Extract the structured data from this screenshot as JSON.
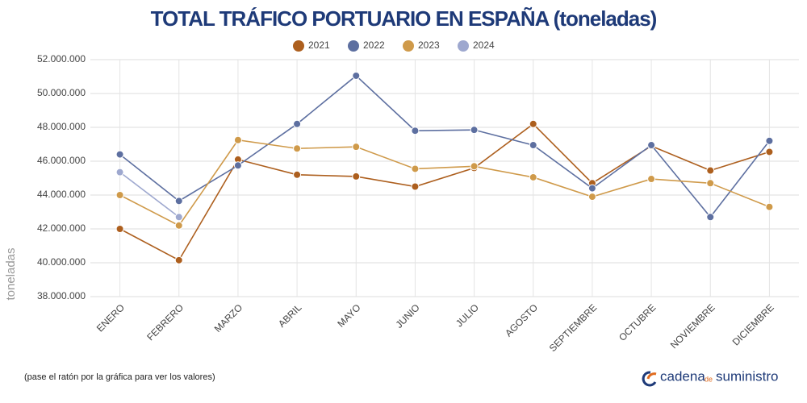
{
  "chart_data": {
    "type": "line",
    "title": "TOTAL TRÁFICO PORTUARIO EN ESPAÑA (toneladas)",
    "y_label": "toneladas",
    "categories": [
      "ENERO",
      "FEBRERO",
      "MARZO",
      "ABRIL",
      "MAYO",
      "JUNIO",
      "JULIO",
      "AGOSTO",
      "SEPTIEMBRE",
      "OCTUBRE",
      "NOVIEMBRE",
      "DICIEMBRE"
    ],
    "series": [
      {
        "name": "2021",
        "color": "#ad5f1e",
        "values": [
          42000000,
          40150000,
          46100000,
          45200000,
          45100000,
          44500000,
          45600000,
          48200000,
          44700000,
          46900000,
          45450000,
          46550000
        ]
      },
      {
        "name": "2022",
        "color": "#5d6fa0",
        "values": [
          46400000,
          43650000,
          45750000,
          48200000,
          51050000,
          47800000,
          47850000,
          46950000,
          44400000,
          46950000,
          42700000,
          47200000
        ]
      },
      {
        "name": "2023",
        "color": "#cf9a4a",
        "values": [
          44000000,
          42200000,
          47250000,
          46750000,
          46850000,
          45550000,
          45700000,
          45050000,
          43900000,
          44950000,
          44700000,
          43300000
        ]
      },
      {
        "name": "2024",
        "color": "#9ea8cf",
        "values": [
          45350000,
          42700000,
          null,
          null,
          null,
          null,
          null,
          null,
          null,
          null,
          null,
          null
        ]
      }
    ],
    "ylim": [
      38000000,
      52000000
    ],
    "yticks": [
      {
        "value": 38000000,
        "label": "38.000.000"
      },
      {
        "value": 40000000,
        "label": "40.000.000"
      },
      {
        "value": 42000000,
        "label": "42.000.000"
      },
      {
        "value": 44000000,
        "label": "44.000.000"
      },
      {
        "value": 46000000,
        "label": "46.000.000"
      },
      {
        "value": 48000000,
        "label": "48.000.000"
      },
      {
        "value": 50000000,
        "label": "50.000.000"
      },
      {
        "value": 52000000,
        "label": "52.000.000"
      }
    ],
    "grid": true,
    "legend": "top",
    "note": "(pase el ratón por la gráfica para ver los valores)",
    "brand": {
      "first": "cadena",
      "middle": "de",
      "last": "suministro"
    }
  }
}
